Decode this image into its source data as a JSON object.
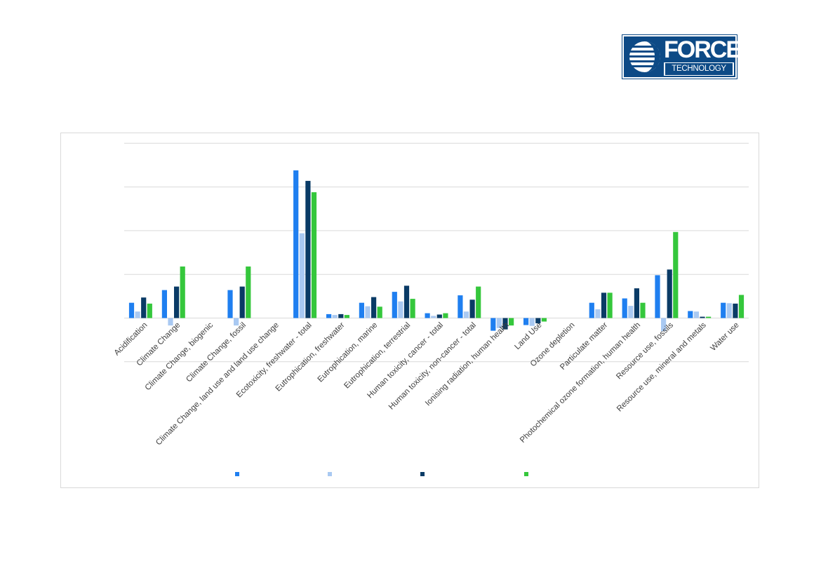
{
  "logo": {
    "word": "FORCE",
    "sub": "TECHNOLOGY"
  },
  "colors": {
    "series": [
      "#1f7ff0",
      "#a9c9f2",
      "#0a3b66",
      "#35c73c"
    ],
    "grid": "#d9d9d9",
    "brand": "#0d4a86"
  },
  "chart_data": {
    "type": "bar",
    "title": "",
    "xlabel": "",
    "ylabel": "",
    "ylim": [
      -1,
      4
    ],
    "grid": true,
    "legend_position": "bottom",
    "categories": [
      "Acidification",
      "Climate Change",
      "Climate Change, biogenic",
      "Climate Change, fossil",
      "Climate Change, land use and land use change",
      "Ecotoxicity, freshwater - total",
      "Eutrophication, freshwater",
      "Eutrophication, marine",
      "Eutrophication, terrestrial",
      "Human toxicity, cancer - total",
      "Human toxicity, non-cancer - total",
      "Ionising radiation, human health",
      "Land Use",
      "Ozone depletion",
      "Particulate matter",
      "Photochemical ozone formation, human health",
      "Resource use, fossils",
      "Resource use, mineral and metals",
      "Water use"
    ],
    "series": [
      {
        "name": "",
        "values": [
          0.35,
          0.64,
          0,
          0.64,
          0,
          3.38,
          0.09,
          0.35,
          0.6,
          0.11,
          0.52,
          -0.29,
          -0.16,
          0,
          0.35,
          0.45,
          0.98,
          0.16,
          0.35
        ]
      },
      {
        "name": "",
        "values": [
          0.15,
          -0.17,
          0,
          -0.17,
          0,
          1.94,
          0.07,
          0.27,
          0.38,
          0.05,
          0.15,
          -0.23,
          -0.18,
          0,
          0.2,
          0.28,
          -0.3,
          0.15,
          0.34
        ]
      },
      {
        "name": "",
        "values": [
          0.47,
          0.72,
          0,
          0.72,
          0,
          3.14,
          0.09,
          0.48,
          0.74,
          0.08,
          0.42,
          -0.26,
          -0.12,
          0,
          0.58,
          0.68,
          1.11,
          0.03,
          0.33
        ]
      },
      {
        "name": "",
        "values": [
          0.33,
          1.18,
          0,
          1.18,
          0,
          2.88,
          0.07,
          0.26,
          0.44,
          0.11,
          0.72,
          -0.17,
          -0.08,
          0,
          0.58,
          0.35,
          1.97,
          0.03,
          0.53
        ]
      }
    ]
  }
}
